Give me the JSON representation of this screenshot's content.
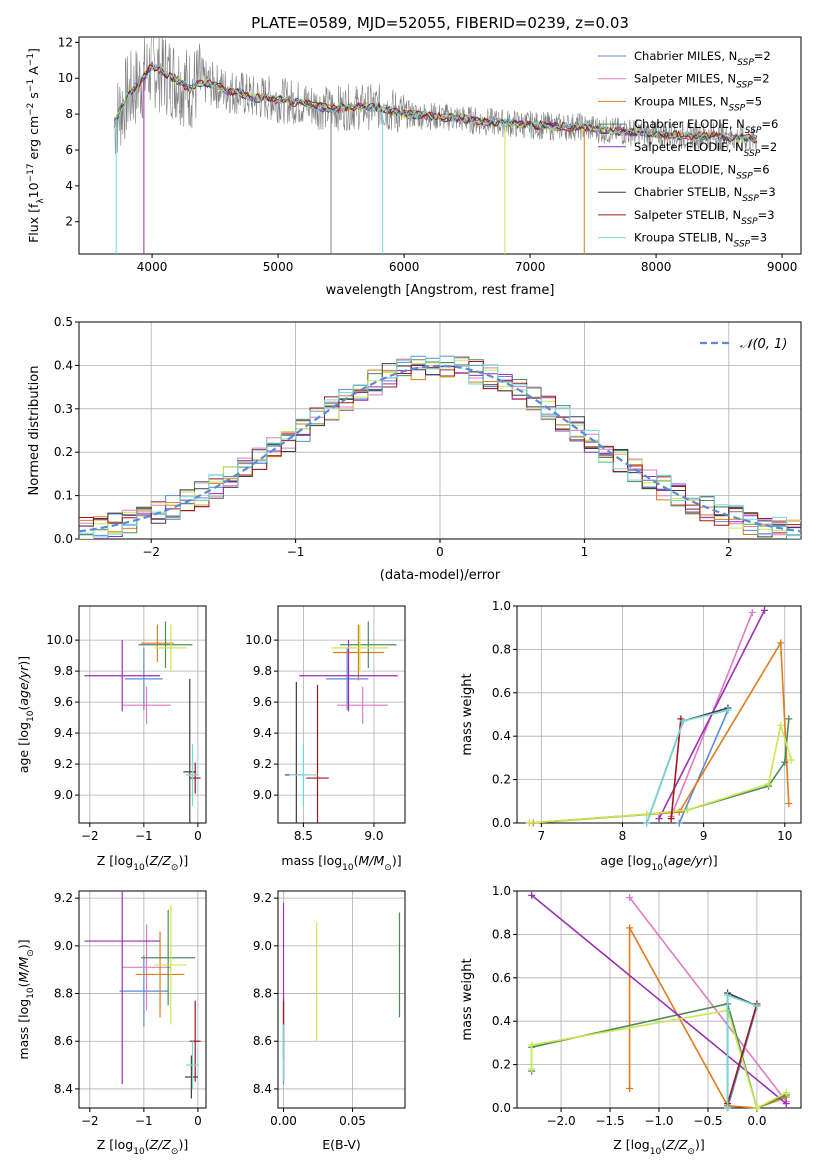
{
  "figure": {
    "title": "PLATE=0589, MJD=52055, FIBERID=0239, z=0.03"
  },
  "colors": {
    "chabrier_miles": "#5b8bd6",
    "salpeter_miles": "#e07bc4",
    "kroupa_miles": "#e07b1e",
    "chabrier_elodie": "#4f8a5f",
    "salpeter_elodie": "#9b2fb5",
    "kroupa_elodie": "#c9e84f",
    "chabrier_stelib": "#3d3d3d",
    "salpeter_stelib": "#a01818",
    "kroupa_stelib": "#72d8dc",
    "data": "#808080",
    "normal": "#5b8bd6"
  },
  "chart_data": [
    {
      "id": "spectrum",
      "type": "line",
      "title": "PLATE=0589, MJD=52055, FIBERID=0239, z=0.03",
      "xlabel": "wavelength [Angstrom, rest frame]",
      "ylabel": "Flux [f_λ 10^-17 erg cm^-2 s^-1 A^-1]",
      "xlim": [
        3420,
        9150
      ],
      "ylim": [
        0.2,
        12.3
      ],
      "xticks": [
        "4000",
        "5000",
        "6000",
        "7000",
        "8000",
        "9000"
      ],
      "yticks": [
        "2",
        "4",
        "6",
        "8",
        "10",
        "12"
      ],
      "legend_position": "top-right",
      "legend": [
        "Chabrier MILES, N_SSP=2",
        "Salpeter MILES, N_SSP=2",
        "Kroupa MILES, N_SSP=5",
        "Chabrier ELODIE, N_SSP=6",
        "Salpeter ELODIE, N_SSP=2",
        "Kroupa ELODIE, N_SSP=6",
        "Chabrier STELIB, N_SSP=3",
        "Salpeter STELIB, N_SSP=3",
        "Kroupa STELIB, N_SSP=3"
      ],
      "series": [
        {
          "wavelength": [
            3700,
            3800,
            3900,
            4000,
            4100,
            4200,
            4300,
            4400,
            4500,
            4600,
            4700,
            4800,
            4900,
            5000,
            5200,
            5400,
            5600,
            5800,
            6000,
            6200,
            6400,
            6600,
            6800,
            7000,
            7200,
            7400,
            7600,
            7800,
            8000,
            8200,
            8400,
            8600,
            8800
          ],
          "flux": [
            7.5,
            9.0,
            9.7,
            10.7,
            10.3,
            9.9,
            9.4,
            9.8,
            9.6,
            9.3,
            9.2,
            8.9,
            8.9,
            8.8,
            8.6,
            8.3,
            8.4,
            8.4,
            8.0,
            7.9,
            7.8,
            7.6,
            7.5,
            7.4,
            7.3,
            7.3,
            7.1,
            7.0,
            6.9,
            6.8,
            6.8,
            6.7,
            6.6
          ]
        }
      ]
    },
    {
      "id": "residuals",
      "type": "line",
      "xlabel": "(data-model)/error",
      "ylabel": "Normed distribution",
      "xlim": [
        -2.5,
        2.5
      ],
      "ylim": [
        0,
        0.5
      ],
      "xticks": [
        "−2",
        "−1",
        "0",
        "1",
        "2"
      ],
      "yticks": [
        "0.0",
        "0.1",
        "0.2",
        "0.3",
        "0.4",
        "0.5"
      ],
      "legend_position": "top-right",
      "legend": [
        "𝒩(0, 1)"
      ],
      "grid": true
    },
    {
      "id": "age_vs_Z",
      "type": "scatter",
      "xlabel": "Z [log10(Z/Z⊙)]",
      "ylabel": "age  [log10(age/yr)]",
      "xlim": [
        -2.2,
        0.15
      ],
      "ylim": [
        8.82,
        10.22
      ],
      "xticks": [
        "−2",
        "−1",
        "0"
      ],
      "yticks": [
        "9.0",
        "9.2",
        "9.4",
        "9.6",
        "9.8",
        "10.0"
      ],
      "points": [
        {
          "series": "Chabrier MILES",
          "x": -1.0,
          "y": 9.75,
          "xerr": 0.35,
          "yerr": 0.2
        },
        {
          "series": "Salpeter MILES",
          "x": -0.95,
          "y": 9.58,
          "xerr": 0.45,
          "yerr": 0.12
        },
        {
          "series": "Kroupa MILES",
          "x": -0.75,
          "y": 9.98,
          "xerr": 0.3,
          "yerr": 0.12
        },
        {
          "series": "Chabrier ELODIE",
          "x": -0.6,
          "y": 9.97,
          "xerr": 0.5,
          "yerr": 0.15
        },
        {
          "series": "Salpeter ELODIE",
          "x": -1.4,
          "y": 9.77,
          "xerr": 0.7,
          "yerr": 0.23
        },
        {
          "series": "Kroupa ELODIE",
          "x": -0.5,
          "y": 9.95,
          "xerr": 0.3,
          "yerr": 0.15
        },
        {
          "series": "Chabrier STELIB",
          "x": -0.15,
          "y": 9.15,
          "xerr": 0.12,
          "yerr": 0.6
        },
        {
          "series": "Salpeter STELIB",
          "x": -0.05,
          "y": 9.11,
          "xerr": 0.1,
          "yerr": 0.1
        },
        {
          "series": "Kroupa STELIB",
          "x": -0.1,
          "y": 9.13,
          "xerr": 0.12,
          "yerr": 0.2
        }
      ]
    },
    {
      "id": "age_vs_mass",
      "type": "scatter",
      "xlabel": "mass [log10(M/M⊙)]",
      "ylabel": "",
      "xlim": [
        8.32,
        9.22
      ],
      "ylim": [
        8.82,
        10.22
      ],
      "xticks": [
        "8.5",
        "9.0"
      ],
      "yticks": [
        "9.0",
        "9.2",
        "9.4",
        "9.6",
        "9.8",
        "10.0"
      ],
      "points": [
        {
          "series": "Chabrier MILES",
          "x": 8.81,
          "y": 9.75,
          "xerr": 0.15,
          "yerr": 0.2
        },
        {
          "series": "Salpeter MILES",
          "x": 8.92,
          "y": 9.58,
          "xerr": 0.18,
          "yerr": 0.12
        },
        {
          "series": "Kroupa MILES",
          "x": 8.89,
          "y": 9.92,
          "xerr": 0.18,
          "yerr": 0.18
        },
        {
          "series": "Chabrier ELODIE",
          "x": 8.96,
          "y": 9.97,
          "xerr": 0.2,
          "yerr": 0.15
        },
        {
          "series": "Salpeter ELODIE",
          "x": 8.82,
          "y": 9.77,
          "xerr": 0.35,
          "yerr": 0.23
        },
        {
          "series": "Kroupa ELODIE",
          "x": 8.9,
          "y": 9.95,
          "xerr": 0.2,
          "yerr": 0.15
        },
        {
          "series": "Chabrier STELIB",
          "x": 8.45,
          "y": 9.13,
          "xerr": 0.08,
          "yerr": 0.6
        },
        {
          "series": "Salpeter STELIB",
          "x": 8.6,
          "y": 9.11,
          "xerr": 0.08,
          "yerr": 0.6
        },
        {
          "series": "Kroupa STELIB",
          "x": 8.5,
          "y": 9.13,
          "xerr": 0.1,
          "yerr": 0.2
        }
      ]
    },
    {
      "id": "weight_vs_age",
      "type": "line",
      "xlabel": "age  [log10(age/yr)]",
      "ylabel": "mass weight",
      "xlim": [
        6.7,
        10.2
      ],
      "ylim": [
        0,
        1
      ],
      "xticks": [
        "7",
        "8",
        "9",
        "10"
      ],
      "yticks": [
        "0.0",
        "0.2",
        "0.4",
        "0.6",
        "0.8",
        "1.0"
      ],
      "series": [
        {
          "name": "Chabrier MILES",
          "x": [
            8.7,
            9.3
          ],
          "y": [
            0.0,
            0.52
          ]
        },
        {
          "name": "Salpeter MILES",
          "x": [
            8.6,
            9.6
          ],
          "y": [
            0.03,
            0.97
          ]
        },
        {
          "name": "Kroupa MILES",
          "x": [
            6.9,
            8.7,
            9.95,
            10.05
          ],
          "y": [
            0.0,
            0.05,
            0.83,
            0.09
          ]
        },
        {
          "name": "Chabrier ELODIE",
          "x": [
            6.85,
            8.3,
            8.8,
            9.8,
            10.0,
            10.05
          ],
          "y": [
            0.0,
            0.04,
            0.06,
            0.17,
            0.28,
            0.48
          ]
        },
        {
          "name": "Salpeter ELODIE",
          "x": [
            8.45,
            9.75
          ],
          "y": [
            0.02,
            0.98
          ]
        },
        {
          "name": "Kroupa ELODIE",
          "x": [
            6.85,
            8.3,
            8.8,
            9.8,
            9.95,
            10.08
          ],
          "y": [
            0.0,
            0.04,
            0.06,
            0.18,
            0.45,
            0.29
          ]
        },
        {
          "name": "Chabrier STELIB",
          "x": [
            8.3,
            8.75,
            9.3
          ],
          "y": [
            0.0,
            0.47,
            0.53
          ]
        },
        {
          "name": "Salpeter STELIB",
          "x": [
            8.6,
            8.72
          ],
          "y": [
            0.02,
            0.48
          ]
        },
        {
          "name": "Kroupa STELIB",
          "x": [
            8.3,
            8.75,
            9.3
          ],
          "y": [
            0.0,
            0.47,
            0.52
          ]
        }
      ]
    },
    {
      "id": "mass_vs_Z",
      "type": "scatter",
      "xlabel": "Z [log10(Z/Z⊙)]",
      "ylabel": "mass [log10(M/M⊙)]",
      "xlim": [
        -2.2,
        0.15
      ],
      "ylim": [
        8.32,
        9.23
      ],
      "xticks": [
        "−2",
        "−1",
        "0"
      ],
      "yticks": [
        "8.4",
        "8.6",
        "8.8",
        "9.0",
        "9.2"
      ],
      "points": [
        {
          "series": "Chabrier MILES",
          "x": -1.0,
          "y": 8.81,
          "xerr": 0.45,
          "yerr": 0.15
        },
        {
          "series": "Salpeter MILES",
          "x": -0.95,
          "y": 8.91,
          "xerr": 0.45,
          "yerr": 0.18
        },
        {
          "series": "Kroupa MILES",
          "x": -0.7,
          "y": 8.88,
          "xerr": 0.45,
          "yerr": 0.18
        },
        {
          "series": "Chabrier ELODIE",
          "x": -0.55,
          "y": 8.95,
          "xerr": 0.5,
          "yerr": 0.2
        },
        {
          "series": "Salpeter ELODIE",
          "x": -1.4,
          "y": 9.02,
          "xerr": 0.7,
          "yerr": 0.6
        },
        {
          "series": "Kroupa ELODIE",
          "x": -0.5,
          "y": 8.92,
          "xerr": 0.3,
          "yerr": 0.25
        },
        {
          "series": "Chabrier STELIB",
          "x": -0.12,
          "y": 8.45,
          "xerr": 0.12,
          "yerr": 0.09
        },
        {
          "series": "Salpeter STELIB",
          "x": -0.05,
          "y": 8.6,
          "xerr": 0.1,
          "yerr": 0.17
        },
        {
          "series": "Kroupa STELIB",
          "x": -0.1,
          "y": 8.5,
          "xerr": 0.12,
          "yerr": 0.1
        }
      ]
    },
    {
      "id": "mass_vs_ebv",
      "type": "scatter",
      "xlabel": "E(B-V)",
      "ylabel": "",
      "xlim": [
        -0.004,
        0.088
      ],
      "ylim": [
        8.32,
        9.23
      ],
      "xticks": [
        "0.00",
        "0.05"
      ],
      "yticks": [
        "8.4",
        "8.6",
        "8.8",
        "9.0",
        "9.2"
      ],
      "points": [
        {
          "series": "Chabrier MILES",
          "x": 0.0,
          "y": 8.6,
          "yerr": 0.18
        },
        {
          "series": "Salpeter ELODIE",
          "x": 0.0,
          "y": 8.85,
          "yerr": 0.33
        },
        {
          "series": "Salpeter STELIB",
          "x": 0.0,
          "y": 8.6,
          "yerr": 0.17
        },
        {
          "series": "Kroupa STELIB",
          "x": 0.0,
          "y": 8.55,
          "yerr": 0.12
        },
        {
          "series": "Kroupa ELODIE",
          "x": 0.024,
          "y": 8.85,
          "yerr": 0.25
        },
        {
          "series": "Chabrier ELODIE",
          "x": 0.084,
          "y": 8.92,
          "yerr": 0.22
        }
      ]
    },
    {
      "id": "weight_vs_Z",
      "type": "line",
      "xlabel": "Z [log10(Z/Z⊙)]",
      "ylabel": "mass weight",
      "xlim": [
        -2.45,
        0.45
      ],
      "ylim": [
        0,
        1
      ],
      "xticks": [
        "−2.0",
        "−1.5",
        "−1.0",
        "−0.5",
        "0.0"
      ],
      "yticks": [
        "0.0",
        "0.2",
        "0.4",
        "0.6",
        "0.8",
        "1.0"
      ],
      "series": [
        {
          "name": "Chabrier MILES",
          "x": [
            -0.3,
            0.0
          ],
          "y": [
            0.0,
            0.47
          ]
        },
        {
          "name": "Salpeter MILES",
          "x": [
            -1.3,
            0.3
          ],
          "y": [
            0.97,
            0.03
          ]
        },
        {
          "name": "Kroupa MILES",
          "x": [
            -1.3,
            -1.3,
            -0.3,
            0.0,
            0.3
          ],
          "y": [
            0.09,
            0.83,
            0.01,
            0.0,
            0.05
          ]
        },
        {
          "name": "Chabrier ELODIE",
          "x": [
            -2.3,
            -2.3,
            -0.3,
            0.0,
            0.3
          ],
          "y": [
            0.17,
            0.28,
            0.48,
            0.0,
            0.06
          ]
        },
        {
          "name": "Salpeter ELODIE",
          "x": [
            -2.3,
            0.3
          ],
          "y": [
            0.98,
            0.02
          ]
        },
        {
          "name": "Kroupa ELODIE",
          "x": [
            -2.3,
            -2.3,
            -0.3,
            0.0,
            0.3
          ],
          "y": [
            0.18,
            0.29,
            0.45,
            0.0,
            0.07
          ]
        },
        {
          "name": "Chabrier STELIB",
          "x": [
            -0.3,
            -0.3,
            0.0
          ],
          "y": [
            0.0,
            0.53,
            0.47
          ]
        },
        {
          "name": "Salpeter STELIB",
          "x": [
            -0.3,
            0.0
          ],
          "y": [
            0.02,
            0.48
          ]
        },
        {
          "name": "Kroupa STELIB",
          "x": [
            -0.3,
            -0.3,
            0.0
          ],
          "y": [
            0.0,
            0.52,
            0.47
          ]
        }
      ]
    }
  ]
}
